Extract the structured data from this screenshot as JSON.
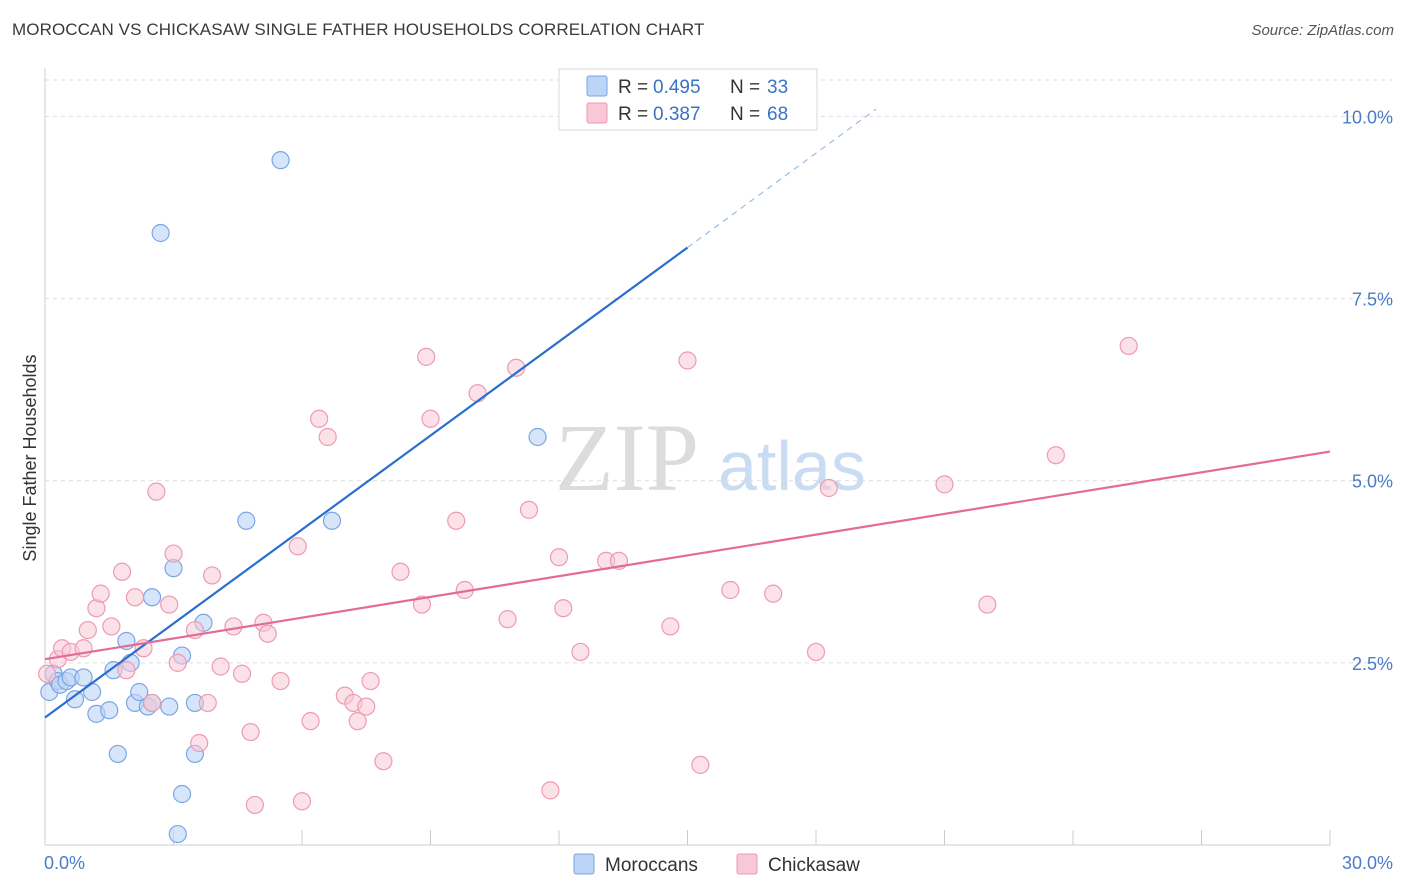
{
  "title": "MOROCCAN VS CHICKASAW SINGLE FATHER HOUSEHOLDS CORRELATION CHART",
  "source": "Source: ZipAtlas.com",
  "watermark": {
    "zip": "ZIP",
    "atlas": "atlas"
  },
  "colors": {
    "blue_fill": "#bcd4f6",
    "blue_stroke": "#7aa6e4",
    "blue_line": "#2a6fd0",
    "pink_fill": "#f8c8d6",
    "pink_stroke": "#ee9ab4",
    "pink_line": "#e36b95",
    "axis_label": "#4a7cc8",
    "grid": "#dddddd"
  },
  "legend_stats": [
    {
      "r_label": "R =",
      "r_value": "0.495",
      "n_label": "N =",
      "n_value": "33"
    },
    {
      "r_label": "R =",
      "r_value": "0.387",
      "n_label": "N =",
      "n_value": "68"
    }
  ],
  "chart_data": {
    "type": "scatter",
    "title": "MOROCCAN VS CHICKASAW SINGLE FATHER HOUSEHOLDS CORRELATION CHART",
    "xlabel": "",
    "ylabel": "Single Father Households",
    "xlim": [
      0,
      30
    ],
    "ylim": [
      0,
      10.5
    ],
    "x_tick_labels": [
      "0.0%",
      "30.0%"
    ],
    "y_ticks": [
      2.5,
      5.0,
      7.5,
      10.0
    ],
    "y_tick_labels": [
      "2.5%",
      "5.0%",
      "7.5%",
      "10.0%"
    ],
    "grid": true,
    "legend_position": "bottom-center",
    "series": [
      {
        "name": "Moroccans",
        "color": "#7aa6e4",
        "trend": {
          "x": [
            0,
            15
          ],
          "y": [
            1.75,
            8.2
          ],
          "dashed_to": [
            19.4,
            10.1
          ]
        },
        "points": [
          [
            0.1,
            2.1
          ],
          [
            0.2,
            2.35
          ],
          [
            0.3,
            2.25
          ],
          [
            0.35,
            2.2
          ],
          [
            0.5,
            2.25
          ],
          [
            0.6,
            2.3
          ],
          [
            0.7,
            2.0
          ],
          [
            0.9,
            2.3
          ],
          [
            1.1,
            2.1
          ],
          [
            1.2,
            1.8
          ],
          [
            1.5,
            1.85
          ],
          [
            1.6,
            2.4
          ],
          [
            1.7,
            1.25
          ],
          [
            1.9,
            2.8
          ],
          [
            2.0,
            2.5
          ],
          [
            2.1,
            1.95
          ],
          [
            2.2,
            2.1
          ],
          [
            2.4,
            1.9
          ],
          [
            2.5,
            1.95
          ],
          [
            2.5,
            3.4
          ],
          [
            2.7,
            8.4
          ],
          [
            2.9,
            1.9
          ],
          [
            3.0,
            3.8
          ],
          [
            3.1,
            0.15
          ],
          [
            3.2,
            0.7
          ],
          [
            3.2,
            2.6
          ],
          [
            3.5,
            1.95
          ],
          [
            3.5,
            1.25
          ],
          [
            3.7,
            3.05
          ],
          [
            4.7,
            4.45
          ],
          [
            5.5,
            9.4
          ],
          [
            6.7,
            4.45
          ],
          [
            11.5,
            5.6
          ]
        ]
      },
      {
        "name": "Chickasaw",
        "color": "#ee9ab4",
        "trend": {
          "x": [
            0,
            30
          ],
          "y": [
            2.55,
            5.4
          ]
        },
        "points": [
          [
            0.05,
            2.35
          ],
          [
            0.3,
            2.55
          ],
          [
            0.4,
            2.7
          ],
          [
            0.6,
            2.65
          ],
          [
            0.9,
            2.7
          ],
          [
            1.0,
            2.95
          ],
          [
            1.2,
            3.25
          ],
          [
            1.3,
            3.45
          ],
          [
            1.55,
            3.0
          ],
          [
            1.8,
            3.75
          ],
          [
            1.9,
            2.4
          ],
          [
            2.1,
            3.4
          ],
          [
            2.3,
            2.7
          ],
          [
            2.5,
            1.95
          ],
          [
            2.6,
            4.85
          ],
          [
            2.9,
            3.3
          ],
          [
            3.0,
            4.0
          ],
          [
            3.1,
            2.5
          ],
          [
            3.5,
            2.95
          ],
          [
            3.6,
            1.4
          ],
          [
            3.8,
            1.95
          ],
          [
            3.9,
            3.7
          ],
          [
            4.1,
            2.45
          ],
          [
            4.4,
            3.0
          ],
          [
            4.6,
            2.35
          ],
          [
            4.8,
            1.55
          ],
          [
            4.9,
            0.55
          ],
          [
            5.1,
            3.05
          ],
          [
            5.2,
            2.9
          ],
          [
            5.5,
            2.25
          ],
          [
            5.9,
            4.1
          ],
          [
            6.0,
            0.6
          ],
          [
            6.2,
            1.7
          ],
          [
            6.4,
            5.85
          ],
          [
            6.6,
            5.6
          ],
          [
            7.0,
            2.05
          ],
          [
            7.2,
            1.95
          ],
          [
            7.3,
            1.7
          ],
          [
            7.5,
            1.9
          ],
          [
            7.6,
            2.25
          ],
          [
            7.9,
            1.15
          ],
          [
            8.3,
            3.75
          ],
          [
            8.8,
            3.3
          ],
          [
            8.9,
            6.7
          ],
          [
            9.0,
            5.85
          ],
          [
            9.6,
            4.45
          ],
          [
            9.8,
            3.5
          ],
          [
            10.1,
            6.2
          ],
          [
            10.8,
            3.1
          ],
          [
            11.0,
            6.55
          ],
          [
            11.3,
            4.6
          ],
          [
            11.8,
            0.75
          ],
          [
            12.0,
            3.95
          ],
          [
            12.1,
            3.25
          ],
          [
            12.5,
            2.65
          ],
          [
            13.1,
            3.9
          ],
          [
            13.4,
            3.9
          ],
          [
            14.6,
            3.0
          ],
          [
            15.0,
            6.65
          ],
          [
            15.3,
            1.1
          ],
          [
            16.0,
            3.5
          ],
          [
            17.0,
            3.45
          ],
          [
            18.0,
            2.65
          ],
          [
            18.3,
            4.9
          ],
          [
            21.0,
            4.95
          ],
          [
            22.0,
            3.3
          ],
          [
            23.6,
            5.35
          ],
          [
            25.3,
            6.85
          ]
        ]
      }
    ]
  },
  "bottom_legend": [
    {
      "label": "Moroccans"
    },
    {
      "label": "Chickasaw"
    }
  ]
}
